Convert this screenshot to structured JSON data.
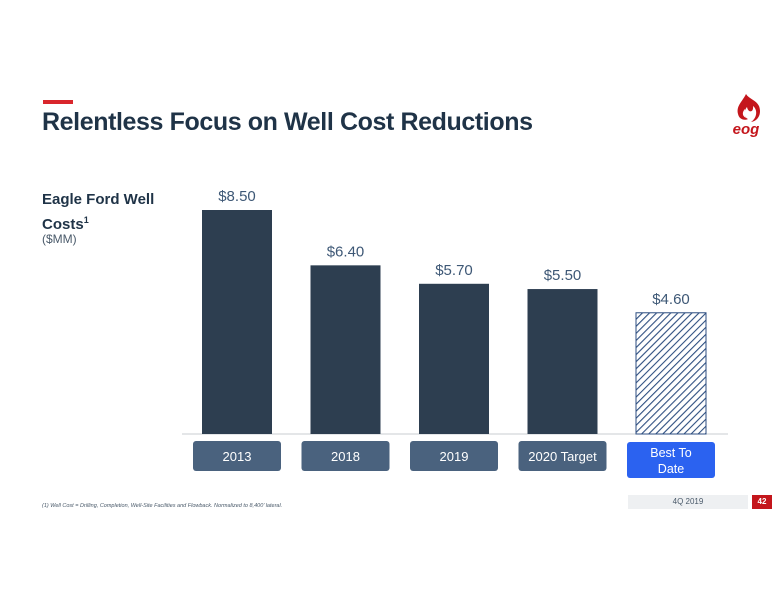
{
  "slide": {
    "title": "Relentless Focus on Well Cost Reductions",
    "accent_color": "#d9262c",
    "logo_text": "eog",
    "chart_label_main": "Eagle Ford Well Costs",
    "chart_label_sup": "1",
    "chart_units": "($MM)",
    "footnote": "(1)  Well Cost = Drilling, Completion, Well-Site Facilities and Flowback. Normalized to 8,400’ lateral.",
    "footer_date": "4Q 2019",
    "page_number": "42"
  },
  "chart_data": {
    "type": "bar",
    "categories": [
      "2013",
      "2018",
      "2019",
      "2020 Target",
      "Best To Date"
    ],
    "values": [
      8.5,
      6.4,
      5.7,
      5.5,
      4.6
    ],
    "value_labels": [
      "$8.50",
      "$6.40",
      "$5.70",
      "$5.50",
      "$4.60"
    ],
    "ylim": [
      0,
      8.5
    ],
    "grid": false,
    "colors": {
      "bar": "#2d3e50",
      "highlight_bar_stripe": "#2d4e80",
      "category_box": "#4a627e",
      "highlight_category_box": "#2b62f0",
      "value_label": "#3e5876"
    },
    "highlight_index": 4
  }
}
